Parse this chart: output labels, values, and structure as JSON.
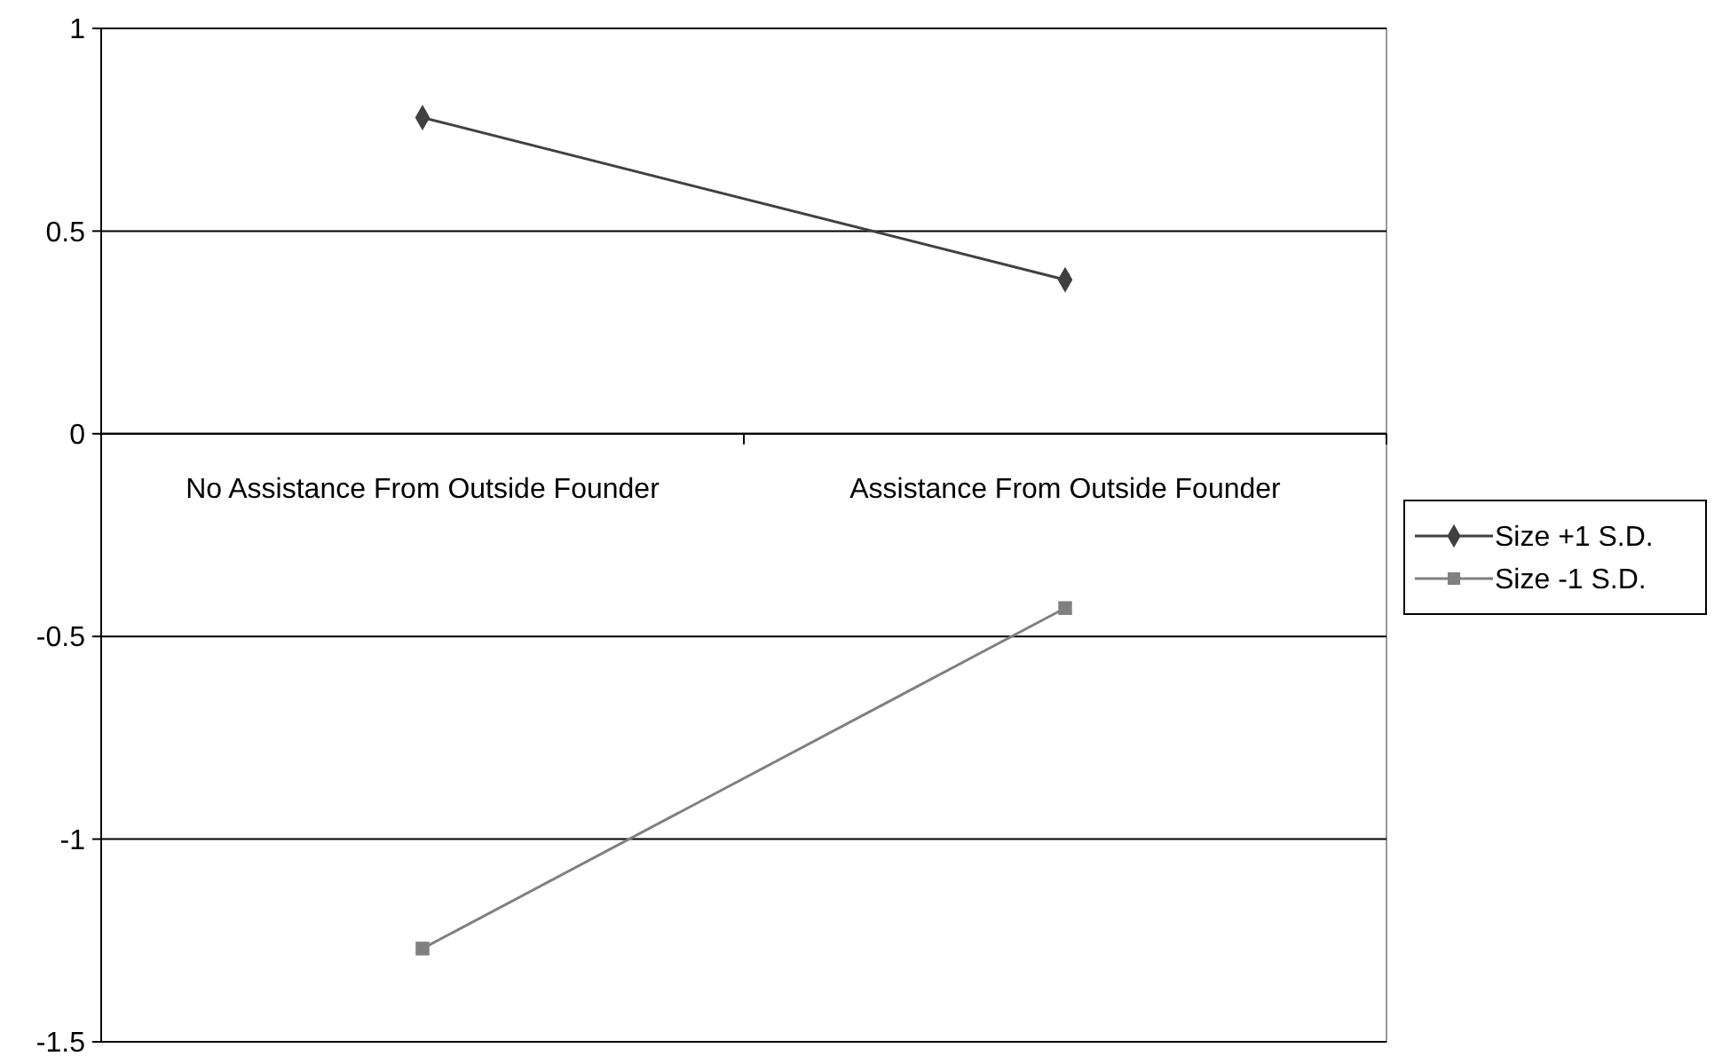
{
  "chart_data": {
    "type": "line",
    "categories": [
      "No Assistance From Outside Founder",
      "Assistance From Outside Founder"
    ],
    "series": [
      {
        "name": "Size +1 S.D.",
        "color": "#404040",
        "values": [
          0.78,
          0.38
        ],
        "marker": "diamond"
      },
      {
        "name": "Size -1 S.D.",
        "color": "#808080",
        "values": [
          -1.27,
          -0.43
        ],
        "marker": "square"
      }
    ],
    "ylim": [
      -1.5,
      1
    ],
    "yticks": [
      -1.5,
      -1,
      -0.5,
      0,
      0.5,
      1
    ],
    "grid": "y",
    "legend": "right",
    "line_style": "solid"
  }
}
